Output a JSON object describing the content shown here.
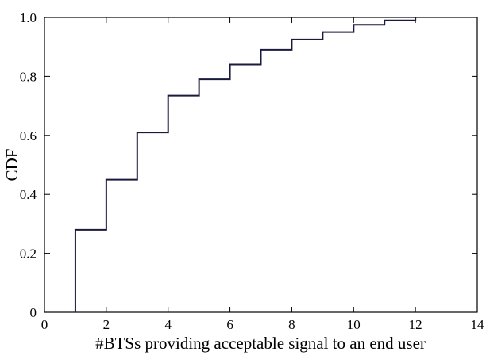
{
  "chart_data": {
    "type": "line",
    "step": true,
    "xlabel": "#BTSs providing acceptable signal to an end user",
    "ylabel": "CDF",
    "xlim": [
      0,
      14
    ],
    "ylim": [
      0,
      1.0
    ],
    "xticks": [
      "0",
      "2",
      "4",
      "6",
      "8",
      "10",
      "12",
      "14"
    ],
    "yticks": [
      "0",
      "0.2",
      "0.4",
      "0.6",
      "0.8",
      "1.0"
    ],
    "grid": false,
    "series": [
      {
        "color": "#1a1a3e",
        "x": [
          1,
          2,
          3,
          4,
          5,
          6,
          7,
          8,
          9,
          10,
          11,
          12
        ],
        "y": [
          0.28,
          0.45,
          0.61,
          0.735,
          0.79,
          0.84,
          0.89,
          0.925,
          0.95,
          0.975,
          0.99,
          1.0
        ]
      }
    ]
  }
}
